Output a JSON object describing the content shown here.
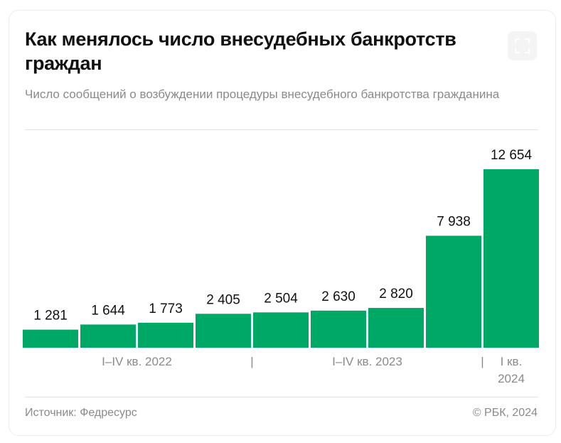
{
  "header": {
    "title": "Как менялось число внесудебных банкротств граждан",
    "subtitle": "Число сообщений о возбуждении процедуры внесудебного банкротства гражданина"
  },
  "footer": {
    "source": "Источник: Федресурс",
    "copyright": "© РБК, 2024"
  },
  "colors": {
    "bar": "#00a865",
    "text": "#111111",
    "muted": "#8a8a8a"
  },
  "expand_icon": "expand-icon",
  "chart_data": {
    "type": "bar",
    "value_labels": [
      "1 281",
      "1 644",
      "1 773",
      "2 405",
      "2 504",
      "2 630",
      "2 820",
      "7 938",
      "12 654"
    ],
    "values": [
      1281,
      1644,
      1773,
      2405,
      2504,
      2630,
      2820,
      7938,
      12654
    ],
    "ylim": [
      0,
      12654
    ],
    "group_labels": [
      {
        "text": "I–IV кв. 2022",
        "bars": [
          0,
          3
        ]
      },
      {
        "text": "I–IV кв. 2023",
        "bars": [
          4,
          7
        ]
      },
      {
        "lines": [
          "I кв.",
          "2024"
        ],
        "bars": [
          8,
          8
        ]
      }
    ],
    "group_separators": [
      "|",
      "|"
    ],
    "grid": false
  }
}
